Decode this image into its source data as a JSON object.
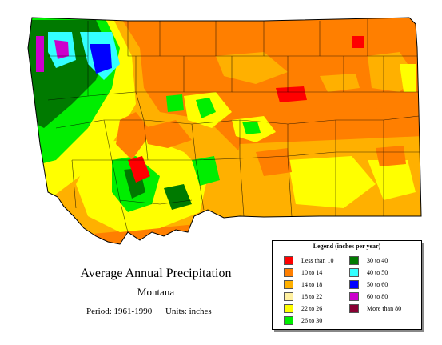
{
  "title": "Average Annual Precipitation",
  "subtitle": "Montana",
  "period": "Period: 1961-1990",
  "units": "Units: inches",
  "legend": {
    "title": "Legend (inches per year)",
    "items": [
      {
        "label": "Less than 10",
        "color": "#ff0000"
      },
      {
        "label": "10 to 14",
        "color": "#ff7f00"
      },
      {
        "label": "14 to 18",
        "color": "#ffb000"
      },
      {
        "label": "18 to 22",
        "color": "#fff0a0"
      },
      {
        "label": "22 to 26",
        "color": "#ffff00"
      },
      {
        "label": "26 to 30",
        "color": "#00ee00"
      },
      {
        "label": "30 to 40",
        "color": "#007a00"
      },
      {
        "label": "40 to 50",
        "color": "#33ffff"
      },
      {
        "label": "50 to 60",
        "color": "#0000ff"
      },
      {
        "label": "60 to 80",
        "color": "#cc00cc"
      },
      {
        "label": "More than 80",
        "color": "#880033"
      }
    ]
  }
}
